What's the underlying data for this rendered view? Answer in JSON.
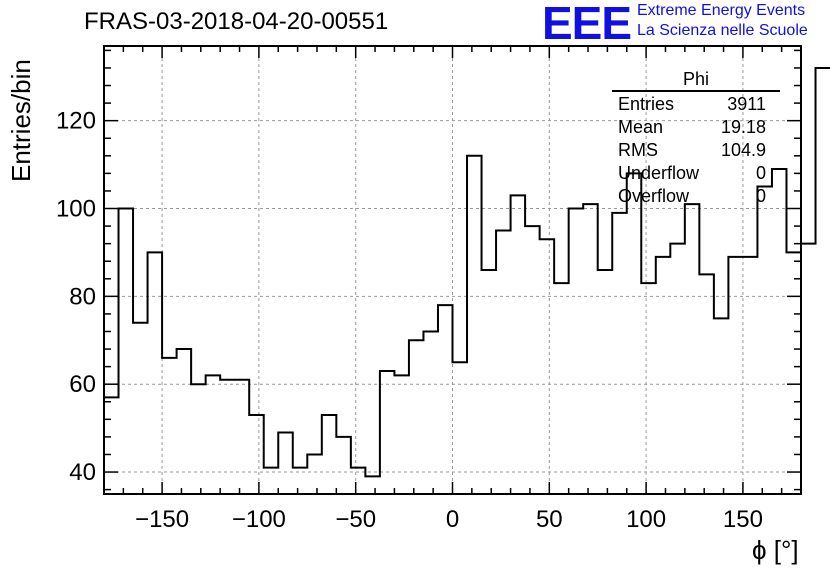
{
  "chart_data": {
    "type": "histogram",
    "title": "FRAS-03-2018-04-20-00551",
    "xlabel": "ϕ [°]",
    "ylabel": "Entries/bin",
    "xlim": [
      -180,
      180
    ],
    "ylim": [
      35,
      137
    ],
    "xticks": [
      -150,
      -100,
      -50,
      0,
      50,
      100,
      150
    ],
    "xtick_labels": [
      "−150",
      "−100",
      "−50",
      "0",
      "50",
      "100",
      "150"
    ],
    "yticks": [
      40,
      60,
      80,
      100,
      120
    ],
    "grid": true,
    "bin_edges_start": -180,
    "bin_width": 7.5,
    "values": [
      57,
      100,
      74,
      90,
      66,
      68,
      60,
      62,
      61,
      61,
      53,
      41,
      49,
      41,
      44,
      53,
      48,
      41,
      39,
      63,
      62,
      70,
      72,
      78,
      65,
      112,
      86,
      95,
      103,
      96,
      93,
      83,
      100,
      101,
      86,
      99,
      108,
      83,
      89,
      92,
      101,
      85,
      75,
      89,
      89,
      105,
      109,
      90,
      92,
      132
    ]
  },
  "stats_box": {
    "name": "Phi",
    "rows": [
      {
        "key": "Entries",
        "value": "3911"
      },
      {
        "key": "Mean",
        "value": "19.18"
      },
      {
        "key": "RMS",
        "value": "104.9"
      },
      {
        "key": "Underflow",
        "value": "0"
      },
      {
        "key": "Overflow",
        "value": "0"
      }
    ]
  },
  "logo": {
    "mark": "EEE",
    "line1": "Extreme Energy Events",
    "line2": "La Scienza nelle Scuole",
    "color": "#1010e0"
  }
}
